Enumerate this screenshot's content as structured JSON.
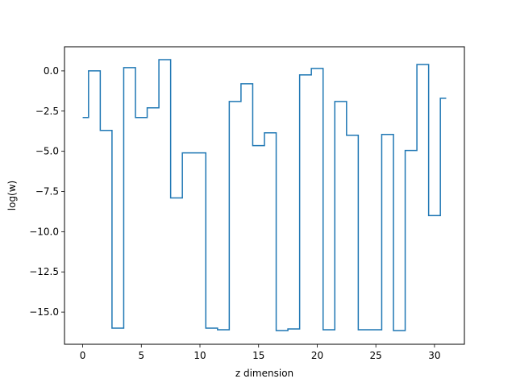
{
  "chart_data": {
    "type": "line",
    "drawstyle": "steps-mid",
    "title": "",
    "xlabel": "z dimension",
    "ylabel": "log(w)",
    "xlim": [
      -1.55,
      32.55
    ],
    "ylim": [
      -17.0,
      1.5
    ],
    "xticks": [
      0,
      5,
      10,
      15,
      20,
      25,
      30
    ],
    "yticks": [
      0.0,
      -2.5,
      -5.0,
      -7.5,
      -10.0,
      -12.5,
      -15.0
    ],
    "ytick_labels": [
      "0.0",
      "−2.5",
      "−5.0",
      "−7.5",
      "−10.0",
      "−12.5",
      "−15.0"
    ],
    "xtick_labels": [
      "0",
      "5",
      "10",
      "15",
      "20",
      "25",
      "30"
    ],
    "grid": false,
    "line_color": "#1f77b4",
    "series": [
      {
        "x": [
          0,
          1,
          2,
          3,
          4,
          5,
          6,
          7,
          8,
          9,
          10,
          11,
          12,
          13,
          14,
          15,
          16,
          17,
          18,
          19,
          20,
          21,
          22,
          23,
          24,
          25,
          26,
          27,
          28,
          29,
          30,
          31
        ],
        "values": [
          -2.9,
          0.0,
          -3.7,
          -16.0,
          0.2,
          -2.9,
          -2.3,
          0.7,
          -7.9,
          -5.1,
          -5.1,
          -16.0,
          -16.1,
          -1.9,
          -0.8,
          -4.65,
          -3.85,
          -16.15,
          -16.05,
          -0.25,
          0.15,
          -16.1,
          -1.9,
          -4.0,
          -16.1,
          -16.1,
          -3.95,
          -16.15,
          -4.95,
          0.4,
          -9.0,
          -1.7
        ]
      }
    ]
  }
}
